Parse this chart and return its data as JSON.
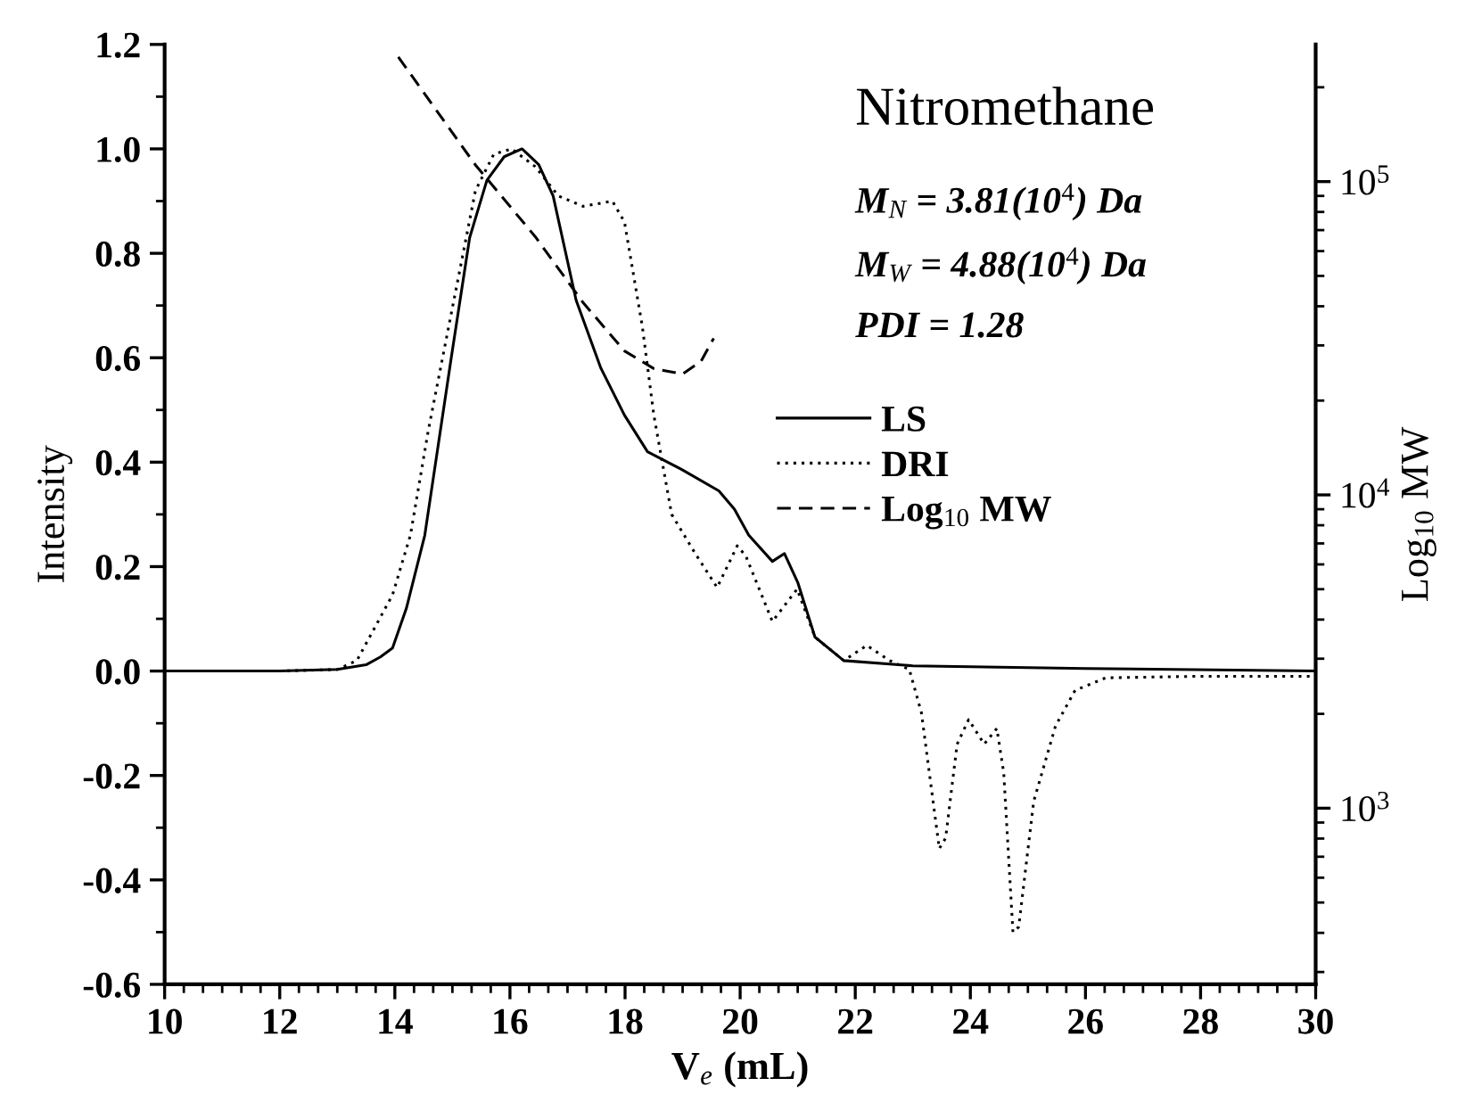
{
  "chart_data": {
    "type": "line",
    "xlabel": "V$_{e}$ (mL)",
    "ylabel": "Intensity",
    "y2label": "Log$_{10}$ MW",
    "xlim": [
      10,
      30
    ],
    "xticks": [
      10,
      12,
      14,
      16,
      18,
      20,
      22,
      24,
      26,
      28,
      30
    ],
    "ylim": [
      -0.6,
      1.2
    ],
    "yticks": [
      -0.6,
      -0.4,
      -0.2,
      {
        "value": 0,
        "label": "0.0"
      },
      0.2,
      0.4,
      0.6,
      0.8,
      {
        "value": 1,
        "label": "1.0"
      },
      1.2
    ],
    "log": "y2",
    "y2lim": [
      274,
      274000
    ],
    "y2ticks": [
      {
        "value": 1000,
        "label": "10$^{3}$"
      },
      {
        "value": 10000,
        "label": "10$^{4}$"
      },
      {
        "value": 100000,
        "label": "10$^{5}$"
      }
    ],
    "grid": false,
    "legend": "right",
    "annotations": [
      "Nitromethane",
      "M$_{N}$ = 3.81(10$^{4}$) Da",
      "M$_{W}$ = 4.88(10$^{4}$) Da",
      "PDI = 1.28"
    ],
    "series": [
      {
        "name": "LS",
        "color": "#000000",
        "line_style": "solid",
        "x": [
          10,
          12,
          13,
          13.5,
          13.75,
          13.96,
          14.2,
          14.52,
          14.98,
          15.3,
          15.6,
          15.9,
          16.21,
          16.5,
          16.75,
          17.15,
          17.58,
          17.99,
          18.39,
          19.0,
          19.63,
          19.9,
          20.15,
          20.56,
          20.77,
          21.0,
          21.3,
          21.8,
          23,
          26,
          30
        ],
        "values": [
          0,
          0,
          0.003,
          0.012,
          0.027,
          0.044,
          0.12,
          0.26,
          0.6,
          0.83,
          0.94,
          0.985,
          1.0,
          0.97,
          0.91,
          0.71,
          0.58,
          0.49,
          0.42,
          0.385,
          0.345,
          0.31,
          0.26,
          0.21,
          0.225,
          0.17,
          0.065,
          0.02,
          0.01,
          0.005,
          0.0
        ]
      },
      {
        "name": "DRI",
        "color": "#000000",
        "line_style": "dotted",
        "x": [
          10,
          12,
          13,
          13.34,
          13.96,
          14.27,
          14.58,
          14.99,
          15.4,
          15.72,
          16.03,
          16.44,
          16.84,
          17.27,
          17.78,
          17.99,
          18.3,
          18.5,
          18.81,
          19.22,
          19.6,
          19.95,
          20.1,
          20.56,
          20.99,
          21.3,
          21.8,
          22.2,
          22.6,
          22.94,
          23.15,
          23.46,
          23.57,
          23.77,
          23.97,
          24.24,
          24.46,
          24.58,
          24.74,
          24.84,
          25.1,
          25.48,
          25.82,
          26.35,
          28,
          30
        ],
        "values": [
          0,
          0,
          0.003,
          0.02,
          0.146,
          0.26,
          0.46,
          0.69,
          0.92,
          0.99,
          1.0,
          0.966,
          0.91,
          0.89,
          0.9,
          0.86,
          0.66,
          0.49,
          0.3,
          0.225,
          0.16,
          0.24,
          0.22,
          0.095,
          0.157,
          0.065,
          0.02,
          0.049,
          0.02,
          0.003,
          -0.08,
          -0.34,
          -0.32,
          -0.14,
          -0.093,
          -0.14,
          -0.11,
          -0.195,
          -0.5,
          -0.49,
          -0.25,
          -0.105,
          -0.037,
          -0.013,
          -0.01,
          -0.01
        ]
      },
      {
        "name": "Log$_{10}$ MW",
        "color": "#000000",
        "line_style": "dashed",
        "axis": "y2",
        "x": [
          14.06,
          15.4,
          16.44,
          17.27,
          17.99,
          18.5,
          19.0,
          19.32,
          19.54
        ],
        "values": [
          250000,
          113000,
          66700,
          41100,
          28800,
          25300,
          24300,
          26700,
          31600
        ]
      }
    ]
  }
}
